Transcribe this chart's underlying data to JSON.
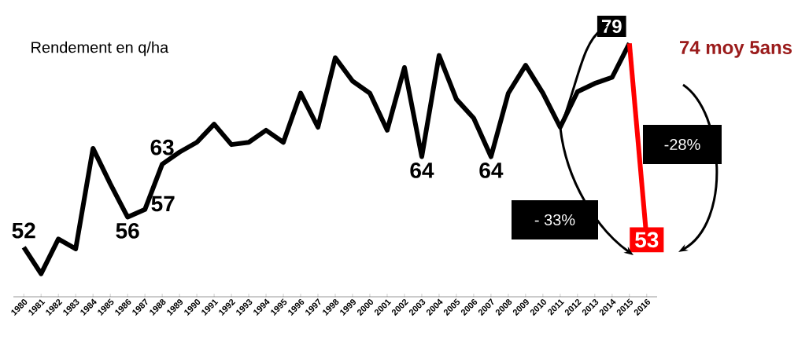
{
  "chart_data": {
    "type": "line",
    "title": "Rendement en q/ha",
    "categories": [
      "1980",
      "1981",
      "1982",
      "1983",
      "1984",
      "1985",
      "1986",
      "1987",
      "1988",
      "1989",
      "1990",
      "1991",
      "1992",
      "1993",
      "1994",
      "1995",
      "1996",
      "1997",
      "1998",
      "1999",
      "2000",
      "2001",
      "2002",
      "2003",
      "2004",
      "2005",
      "2006",
      "2007",
      "2008",
      "2009",
      "2010",
      "2011",
      "2012",
      "2013",
      "2014",
      "2015",
      "2016"
    ],
    "series": [
      {
        "color": "#000000",
        "values": [
          52,
          48.5,
          53.1,
          51.8,
          65.1,
          60.4,
          56,
          57,
          63,
          64.6,
          65.9,
          68.3,
          65.6,
          65.9,
          67.5,
          65.9,
          72.4,
          67.9,
          77.1,
          74,
          72.4,
          67.5,
          75.8,
          64,
          77.4,
          71.6,
          69.1,
          64,
          72.4,
          76.1,
          72.4,
          67.9,
          72.6,
          73.7,
          74.5,
          79,
          null
        ],
        "value_labels": [
          "52",
          null,
          null,
          null,
          null,
          null,
          "56",
          "57",
          "63",
          null,
          null,
          null,
          null,
          null,
          null,
          null,
          null,
          null,
          null,
          null,
          null,
          null,
          null,
          "64",
          null,
          null,
          null,
          "64",
          null,
          null,
          null,
          null,
          null,
          null,
          null,
          "79",
          null
        ]
      },
      {
        "color": "#ff0000",
        "values": [
          null,
          null,
          null,
          null,
          null,
          null,
          null,
          null,
          null,
          null,
          null,
          null,
          null,
          null,
          null,
          null,
          null,
          null,
          null,
          null,
          null,
          null,
          null,
          null,
          null,
          null,
          null,
          null,
          null,
          null,
          null,
          null,
          null,
          null,
          null,
          79,
          53
        ],
        "value_labels": [
          null,
          null,
          null,
          null,
          null,
          null,
          null,
          null,
          null,
          null,
          null,
          null,
          null,
          null,
          null,
          null,
          null,
          null,
          null,
          null,
          null,
          null,
          null,
          null,
          null,
          null,
          null,
          null,
          null,
          null,
          null,
          null,
          null,
          null,
          null,
          null,
          "53"
        ]
      }
    ],
    "annotations": [
      "74 moy 5ans",
      "-28%",
      "- 33%"
    ],
    "line_style": "solid",
    "tick_labels": "x"
  }
}
